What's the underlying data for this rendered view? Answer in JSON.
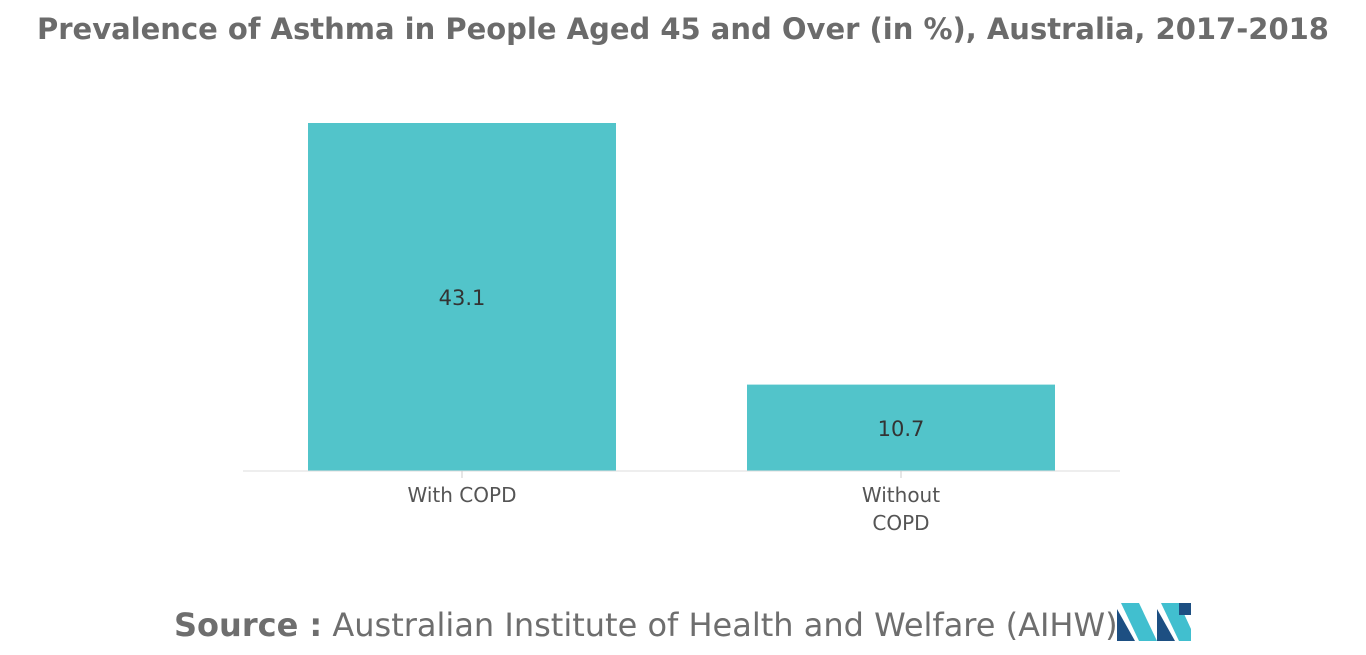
{
  "chart_data": {
    "type": "bar",
    "title": "Prevalence of Asthma in People Aged 45 and Over (in %), Australia, 2017-2018",
    "categories": [
      [
        "With COPD"
      ],
      [
        "Without",
        "COPD"
      ]
    ],
    "values": [
      43.1,
      10.7
    ],
    "data_labels": [
      "43.1",
      "10.7"
    ],
    "ylim": [
      0,
      43.1
    ],
    "grid": false,
    "legend": "none",
    "bar_color": "#52c4ca"
  },
  "source": {
    "label": "Source :",
    "text": "Australian Institute of Health and Welfare (AIHW)"
  },
  "logo": {
    "icon": "mordor-intelligence-logo",
    "colors": [
      "#1d4f82",
      "#41bfcf"
    ]
  }
}
